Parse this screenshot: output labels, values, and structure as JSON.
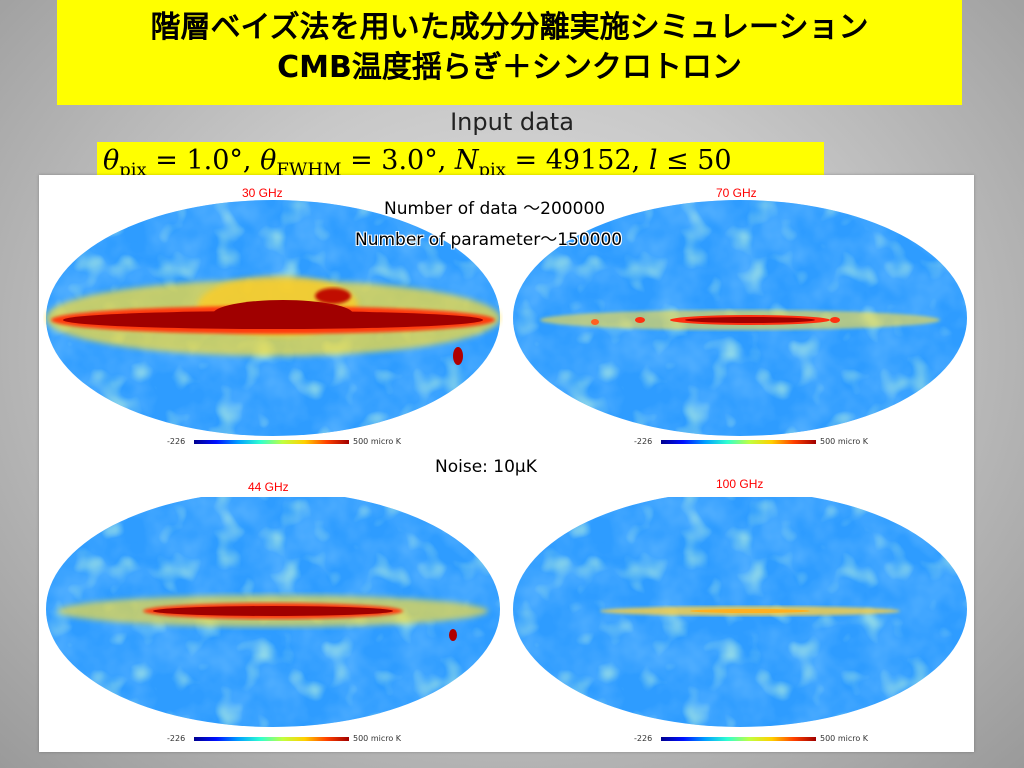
{
  "title": {
    "line1": "階層ベイズ法を用いた成分分離実施シミュレーション",
    "line2": "CMB温度揺らぎ＋シンクロトロン"
  },
  "subtitle": "Input data",
  "formula": {
    "theta_pix_sub": "pix",
    "theta_pix_val": " = 1.0°, ",
    "theta_fwhm_sub": "FWHM",
    "theta_fwhm_val": " = 3.0°, ",
    "npix_sub": "pix",
    "npix_val": " = 49152, ",
    "l_val": " ≤ 50"
  },
  "notes": {
    "data_count": "Number of data ～200000",
    "param_count": "Number of parameter～150000",
    "noise": "Noise: 10μK"
  },
  "maps": [
    {
      "freq": "30 GHz",
      "scale_min": "-226",
      "scale_max": "500 micro K"
    },
    {
      "freq": "70 GHz",
      "scale_min": "-226",
      "scale_max": "500 micro K"
    },
    {
      "freq": "44 GHz",
      "scale_min": "-226",
      "scale_max": "500 micro K"
    },
    {
      "freq": "100 GHz",
      "scale_min": "-226",
      "scale_max": "500 micro K"
    }
  ],
  "colors": {
    "title_bg": "#ffff00",
    "freq_label": "#ff0000"
  }
}
